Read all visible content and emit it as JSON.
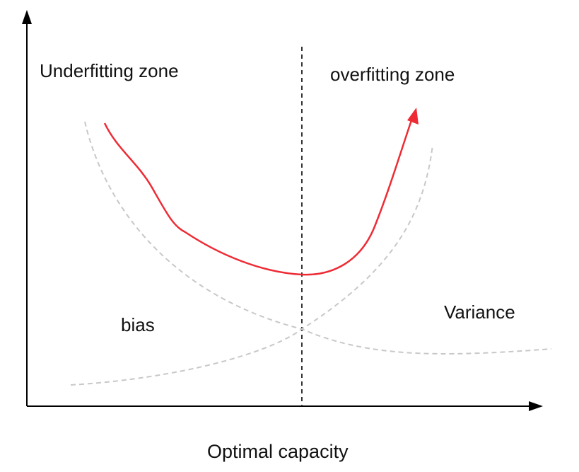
{
  "labels": {
    "underfitting_zone": "Underfitting zone",
    "overfitting_zone": "overfitting zone",
    "bias": "bias",
    "variance": "Variance",
    "x_axis": "Optimal capacity"
  },
  "colors": {
    "axis": "#000000",
    "divider": "#333333",
    "total_error": "#ee2b35",
    "component_curves": "#c8c8c8",
    "text": "#111111"
  }
}
